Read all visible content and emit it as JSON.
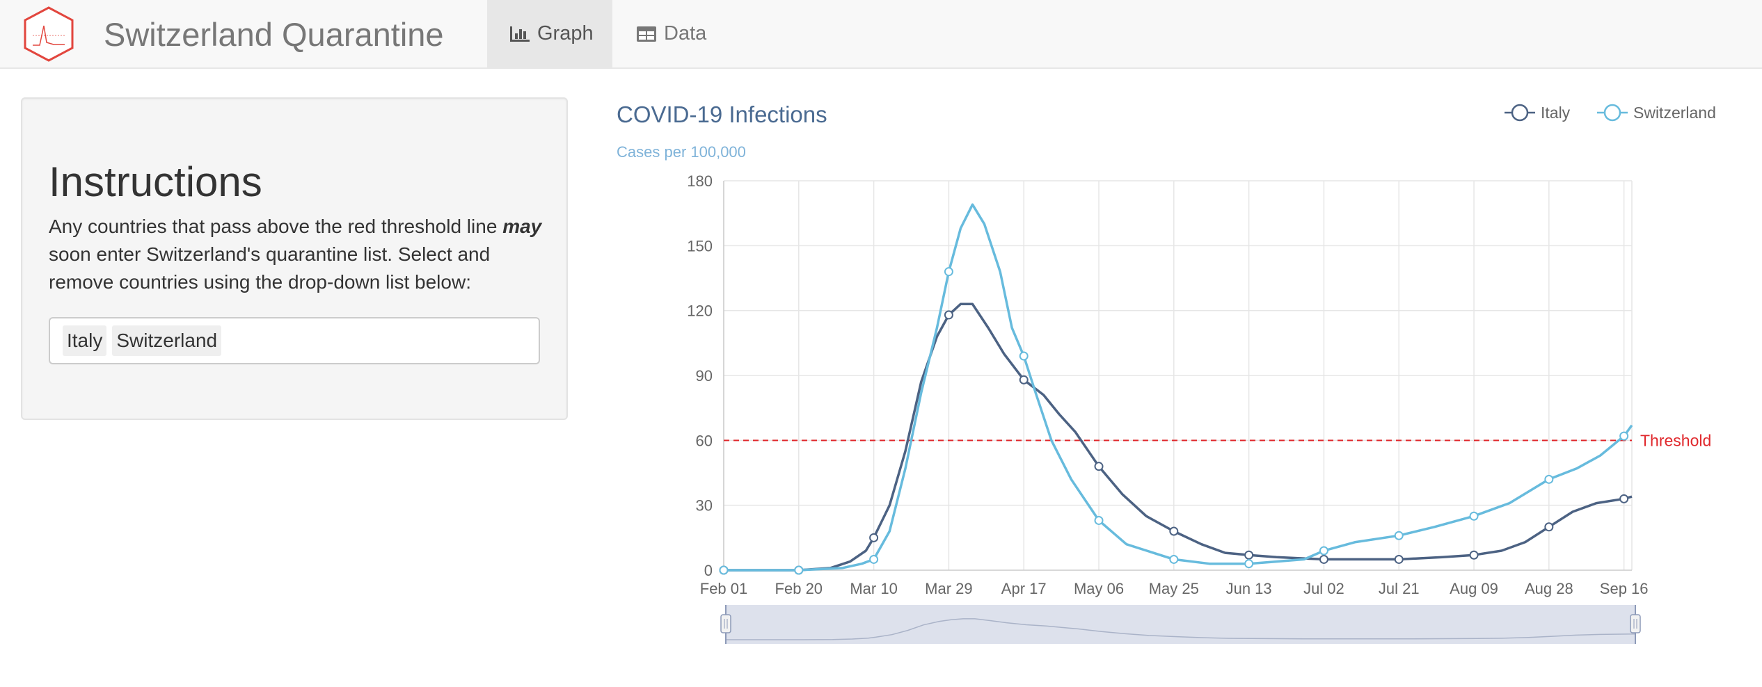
{
  "navbar": {
    "title": "Switzerland Quarantine",
    "logo": "hexagon-chart-logo",
    "tabs": [
      {
        "label": "Graph",
        "icon": "bar-chart-icon",
        "active": true
      },
      {
        "label": "Data",
        "icon": "table-icon",
        "active": false
      }
    ]
  },
  "sidebar": {
    "heading": "Instructions",
    "text_before": "Any countries that pass above the red threshold line ",
    "text_emphasis": "may",
    "text_after": " soon enter Switzerland's quarantine list. Select and remove countries using the drop-down list below:",
    "selected_countries": [
      "Italy",
      "Switzerland"
    ]
  },
  "colors": {
    "italy": "#4c6283",
    "switzerland": "#67bbdd",
    "threshold": "#e0282c",
    "title": "#4a6a91",
    "subtitle": "#7fb3d9",
    "navigator_fill": "#dde1ec"
  },
  "chart_data": {
    "type": "line",
    "title": "COVID-19 Infections",
    "subtitle": "Cases per 100,000",
    "x_ticks": [
      "Feb 01",
      "Feb 20",
      "Mar 10",
      "Mar 29",
      "Apr 17",
      "May 06",
      "May 25",
      "Jun 13",
      "Jul 02",
      "Jul 21",
      "Aug 09",
      "Aug 28",
      "Sep 16"
    ],
    "y_ticks": [
      0,
      30,
      60,
      90,
      120,
      150,
      180
    ],
    "ylim": [
      0,
      180
    ],
    "xlim": [
      "2020-02-01",
      "2020-09-18"
    ],
    "grid": true,
    "legend_position": "top-right",
    "threshold": {
      "value": 60,
      "label": "Threshold"
    },
    "series": [
      {
        "name": "Italy",
        "points": [
          [
            "2020-02-01",
            0
          ],
          [
            "2020-02-20",
            0
          ],
          [
            "2020-02-28",
            1
          ],
          [
            "2020-03-04",
            4
          ],
          [
            "2020-03-08",
            9
          ],
          [
            "2020-03-10",
            15
          ],
          [
            "2020-03-14",
            30
          ],
          [
            "2020-03-18",
            55
          ],
          [
            "2020-03-22",
            87
          ],
          [
            "2020-03-26",
            108
          ],
          [
            "2020-03-29",
            118
          ],
          [
            "2020-04-01",
            123
          ],
          [
            "2020-04-04",
            123
          ],
          [
            "2020-04-08",
            112
          ],
          [
            "2020-04-12",
            100
          ],
          [
            "2020-04-17",
            88
          ],
          [
            "2020-04-22",
            81
          ],
          [
            "2020-04-26",
            72
          ],
          [
            "2020-04-30",
            64
          ],
          [
            "2020-05-06",
            48
          ],
          [
            "2020-05-12",
            35
          ],
          [
            "2020-05-18",
            25
          ],
          [
            "2020-05-25",
            18
          ],
          [
            "2020-06-01",
            12
          ],
          [
            "2020-06-07",
            8
          ],
          [
            "2020-06-13",
            7
          ],
          [
            "2020-06-20",
            6
          ],
          [
            "2020-06-26",
            5.5
          ],
          [
            "2020-07-02",
            5
          ],
          [
            "2020-07-10",
            5
          ],
          [
            "2020-07-21",
            5
          ],
          [
            "2020-08-01",
            6
          ],
          [
            "2020-08-09",
            7
          ],
          [
            "2020-08-16",
            9
          ],
          [
            "2020-08-22",
            13
          ],
          [
            "2020-08-28",
            20
          ],
          [
            "2020-09-03",
            27
          ],
          [
            "2020-09-09",
            31
          ],
          [
            "2020-09-16",
            33
          ],
          [
            "2020-09-18",
            34
          ]
        ]
      },
      {
        "name": "Switzerland",
        "points": [
          [
            "2020-02-01",
            0
          ],
          [
            "2020-02-20",
            0
          ],
          [
            "2020-03-02",
            1
          ],
          [
            "2020-03-07",
            3
          ],
          [
            "2020-03-10",
            5
          ],
          [
            "2020-03-14",
            18
          ],
          [
            "2020-03-18",
            47
          ],
          [
            "2020-03-22",
            82
          ],
          [
            "2020-03-26",
            112
          ],
          [
            "2020-03-29",
            138
          ],
          [
            "2020-04-01",
            158
          ],
          [
            "2020-04-04",
            169
          ],
          [
            "2020-04-07",
            160
          ],
          [
            "2020-04-11",
            138
          ],
          [
            "2020-04-14",
            112
          ],
          [
            "2020-04-17",
            99
          ],
          [
            "2020-04-20",
            82
          ],
          [
            "2020-04-24",
            60
          ],
          [
            "2020-04-29",
            42
          ],
          [
            "2020-05-06",
            23
          ],
          [
            "2020-05-13",
            12
          ],
          [
            "2020-05-25",
            5
          ],
          [
            "2020-06-03",
            3
          ],
          [
            "2020-06-13",
            3
          ],
          [
            "2020-06-20",
            4
          ],
          [
            "2020-06-27",
            5
          ],
          [
            "2020-07-02",
            9
          ],
          [
            "2020-07-10",
            13
          ],
          [
            "2020-07-21",
            16
          ],
          [
            "2020-07-30",
            20
          ],
          [
            "2020-08-09",
            25
          ],
          [
            "2020-08-18",
            31
          ],
          [
            "2020-08-28",
            42
          ],
          [
            "2020-09-04",
            47
          ],
          [
            "2020-09-10",
            53
          ],
          [
            "2020-09-16",
            62
          ],
          [
            "2020-09-18",
            67
          ]
        ]
      }
    ],
    "navigator": true
  }
}
